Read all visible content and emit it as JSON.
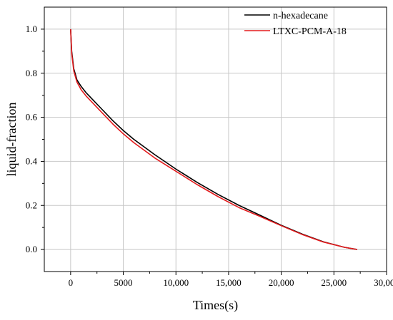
{
  "chart_data": {
    "type": "line",
    "title": "",
    "xlabel": "Times(s)",
    "ylabel": "liquid-fraction",
    "xlim": [
      -2500,
      30000
    ],
    "ylim": [
      -0.1,
      1.1
    ],
    "grid": true,
    "legend_position": "top-right",
    "x_ticks": [
      0,
      5000,
      10000,
      15000,
      20000,
      25000,
      30000
    ],
    "x_tick_labels": [
      "0",
      "5000",
      "10,000",
      "15,000",
      "20,000",
      "25,000",
      "30,000"
    ],
    "y_ticks": [
      0.0,
      0.2,
      0.4,
      0.6,
      0.8,
      1.0
    ],
    "y_tick_labels": [
      "0.0",
      "0.2",
      "0.4",
      "0.6",
      "0.8",
      "1.0"
    ],
    "series": [
      {
        "name": "n-hexadecane",
        "color": "#000000",
        "x": [
          0,
          100,
          300,
          600,
          1000,
          1500,
          2000,
          3000,
          4000,
          5000,
          6000,
          8000,
          10000,
          12000,
          14000,
          16000,
          18000,
          20000,
          22000,
          24000,
          26000,
          27200
        ],
        "y": [
          1.0,
          0.9,
          0.82,
          0.77,
          0.74,
          0.71,
          0.685,
          0.635,
          0.585,
          0.54,
          0.5,
          0.43,
          0.365,
          0.305,
          0.25,
          0.2,
          0.155,
          0.11,
          0.07,
          0.035,
          0.01,
          0.0
        ]
      },
      {
        "name": "LTXC-PCM-A-18",
        "color": "#e31a1c",
        "x": [
          0,
          100,
          300,
          600,
          1000,
          1500,
          2000,
          3000,
          4000,
          5000,
          6000,
          8000,
          10000,
          12000,
          14000,
          16000,
          18000,
          20000,
          22000,
          24000,
          26000,
          27200
        ],
        "y": [
          1.0,
          0.89,
          0.81,
          0.76,
          0.725,
          0.695,
          0.67,
          0.62,
          0.57,
          0.525,
          0.485,
          0.415,
          0.355,
          0.295,
          0.24,
          0.19,
          0.15,
          0.108,
          0.068,
          0.034,
          0.01,
          0.0
        ]
      }
    ]
  }
}
